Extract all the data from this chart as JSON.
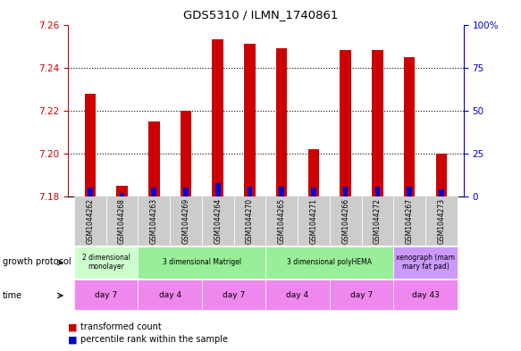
{
  "title": "GDS5310 / ILMN_1740861",
  "samples": [
    "GSM1044262",
    "GSM1044268",
    "GSM1044263",
    "GSM1044269",
    "GSM1044264",
    "GSM1044270",
    "GSM1044265",
    "GSM1044271",
    "GSM1044266",
    "GSM1044272",
    "GSM1044267",
    "GSM1044273"
  ],
  "transformed_counts": [
    7.228,
    7.185,
    7.215,
    7.22,
    7.253,
    7.251,
    7.249,
    7.202,
    7.248,
    7.248,
    7.245,
    7.2
  ],
  "percentile_ranks": [
    5,
    2,
    5,
    5,
    8,
    6,
    6,
    5,
    6,
    6,
    6,
    4
  ],
  "ylim_left": [
    7.18,
    7.26
  ],
  "ylim_right": [
    0,
    100
  ],
  "yticks_left": [
    7.18,
    7.2,
    7.22,
    7.24,
    7.26
  ],
  "yticks_right": [
    0,
    25,
    50,
    75,
    100
  ],
  "ytick_labels_right": [
    "0",
    "25",
    "50",
    "75",
    "100%"
  ],
  "bar_color_red": "#cc0000",
  "bar_color_blue": "#0000cc",
  "bar_width": 0.35,
  "base_value": 7.18,
  "growth_protocol_groups": [
    {
      "label": "2 dimensional\nmonolayer",
      "start": 0,
      "end": 1,
      "color": "#ccffcc"
    },
    {
      "label": "3 dimensional Matrigel",
      "start": 2,
      "end": 5,
      "color": "#99ee99"
    },
    {
      "label": "3 dimensional polyHEMA",
      "start": 6,
      "end": 9,
      "color": "#99ee99"
    },
    {
      "label": "xenograph (mam\nmary fat pad)",
      "start": 10,
      "end": 11,
      "color": "#cc99ff"
    }
  ],
  "time_groups": [
    {
      "label": "day 7",
      "start": 0,
      "end": 1,
      "color": "#ee88ee"
    },
    {
      "label": "day 4",
      "start": 2,
      "end": 3,
      "color": "#ee88ee"
    },
    {
      "label": "day 7",
      "start": 4,
      "end": 5,
      "color": "#ee88ee"
    },
    {
      "label": "day 4",
      "start": 6,
      "end": 7,
      "color": "#ee88ee"
    },
    {
      "label": "day 7",
      "start": 8,
      "end": 9,
      "color": "#ee88ee"
    },
    {
      "label": "day 43",
      "start": 10,
      "end": 11,
      "color": "#ee88ee"
    }
  ],
  "label_growth_protocol": "growth protocol",
  "label_time": "time",
  "legend_red": "transformed count",
  "legend_blue": "percentile rank within the sample",
  "bg_color": "#ffffff",
  "tick_color_left": "#cc0000",
  "tick_color_right": "#0000cc",
  "grid_color": "#000000",
  "sample_label_bg": "#cccccc"
}
